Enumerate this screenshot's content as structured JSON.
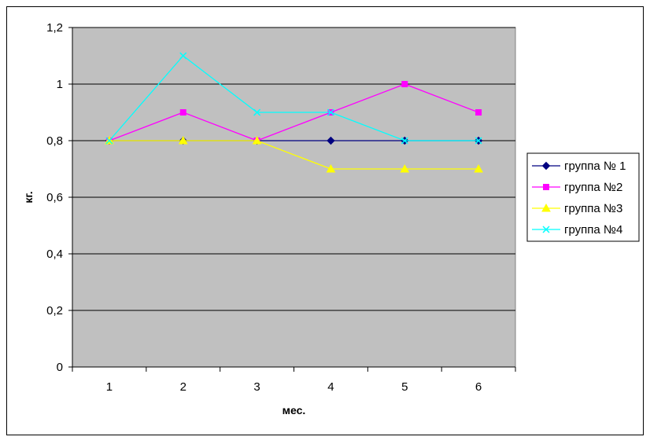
{
  "chart_data": {
    "type": "line",
    "title": "",
    "xlabel": "мес.",
    "ylabel": "кг.",
    "categories": [
      "1",
      "2",
      "3",
      "4",
      "5",
      "6"
    ],
    "ylim": [
      0,
      1.2
    ],
    "yticks": [
      "0",
      "0,2",
      "0,4",
      "0,6",
      "0,8",
      "1",
      "1,2"
    ],
    "ytick_values": [
      0,
      0.2,
      0.4,
      0.6,
      0.8,
      1.0,
      1.2
    ],
    "grid": true,
    "legend_position": "right",
    "plot_background": "#c0c0c0",
    "series": [
      {
        "name": "группа № 1",
        "values": [
          0.8,
          0.8,
          0.8,
          0.8,
          0.8,
          0.8
        ],
        "color": "#000080",
        "marker": "diamond"
      },
      {
        "name": "группа №2",
        "values": [
          0.8,
          0.9,
          0.8,
          0.9,
          1.0,
          0.9
        ],
        "color": "#ff00ff",
        "marker": "square"
      },
      {
        "name": "группа №3",
        "values": [
          0.8,
          0.8,
          0.8,
          0.7,
          0.7,
          0.7
        ],
        "color": "#ffff00",
        "marker": "triangle"
      },
      {
        "name": "группа №4",
        "values": [
          0.8,
          1.1,
          0.9,
          0.9,
          0.8,
          0.8
        ],
        "color": "#00ffff",
        "marker": "x"
      }
    ]
  }
}
